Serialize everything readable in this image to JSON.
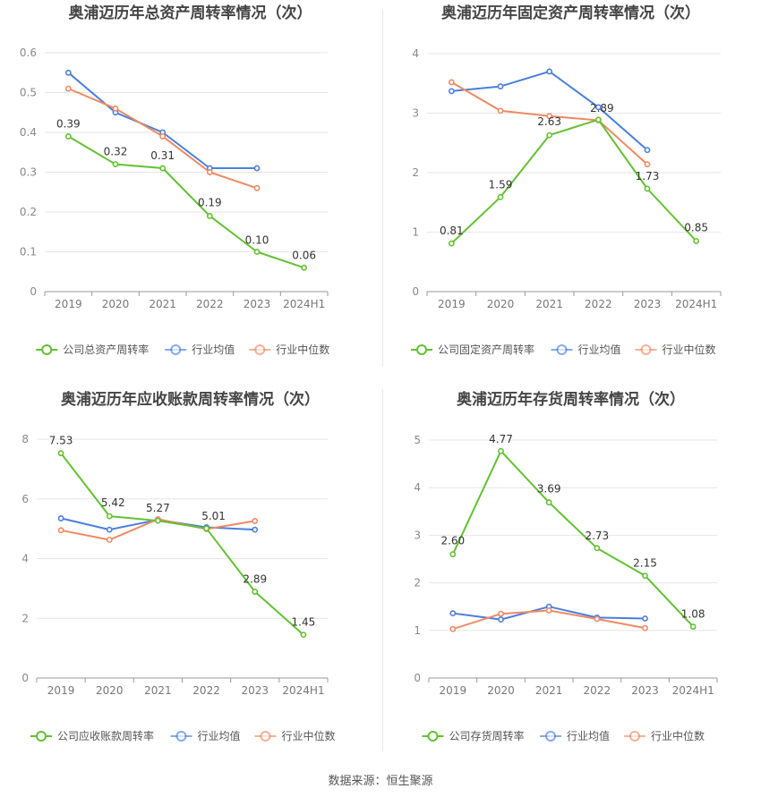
{
  "footer": {
    "label": "数据来源：",
    "source": "恒生聚源"
  },
  "colors": {
    "company": "#63c132",
    "industry_avg": "#4a7fdc",
    "industry_median": "#ef8a62"
  },
  "chart_data": [
    {
      "type": "line",
      "title": "奥浦迈历年总资产周转率情况（次）",
      "categories": [
        "2019",
        "2020",
        "2021",
        "2022",
        "2023",
        "2024H1"
      ],
      "ylim": [
        0,
        0.6
      ],
      "yticks": [
        "0",
        "0.1",
        "0.2",
        "0.3",
        "0.4",
        "0.5",
        "0.6"
      ],
      "grid": true,
      "legend_position": "bottom",
      "series": [
        {
          "name": "公司总资产周转率",
          "role": "company",
          "values": [
            0.39,
            0.32,
            0.31,
            0.19,
            0.1,
            0.06
          ],
          "labels": [
            "0.39",
            "0.32",
            "0.31",
            "0.19",
            "0.10",
            "0.06"
          ]
        },
        {
          "name": "行业均值",
          "role": "industry_avg",
          "values": [
            0.55,
            0.45,
            0.4,
            0.31,
            0.31,
            null
          ]
        },
        {
          "name": "行业中位数",
          "role": "industry_median",
          "values": [
            0.51,
            0.46,
            0.39,
            0.3,
            0.26,
            null
          ]
        }
      ]
    },
    {
      "type": "line",
      "title": "奥浦迈历年固定资产周转率情况（次）",
      "categories": [
        "2019",
        "2020",
        "2021",
        "2022",
        "2023",
        "2024H1"
      ],
      "ylim": [
        0,
        4
      ],
      "yticks": [
        "0",
        "1",
        "2",
        "3",
        "4"
      ],
      "grid": true,
      "legend_position": "bottom",
      "series": [
        {
          "name": "公司固定资产周转率",
          "role": "company",
          "values": [
            0.81,
            1.59,
            2.63,
            2.89,
            1.73,
            0.85
          ],
          "labels": [
            "0.81",
            "1.59",
            "2.63",
            "2.89",
            "1.73",
            "0.85"
          ]
        },
        {
          "name": "行业均值",
          "role": "industry_avg",
          "values": [
            3.37,
            3.45,
            3.7,
            3.1,
            2.38,
            null
          ]
        },
        {
          "name": "行业中位数",
          "role": "industry_median",
          "values": [
            3.52,
            3.04,
            2.95,
            2.88,
            2.14,
            null
          ]
        }
      ]
    },
    {
      "type": "line",
      "title": "奥浦迈历年应收账款周转率情况（次）",
      "categories": [
        "2019",
        "2020",
        "2021",
        "2022",
        "2023",
        "2024H1"
      ],
      "ylim": [
        0,
        8
      ],
      "yticks": [
        "0",
        "2",
        "4",
        "6",
        "8"
      ],
      "grid": true,
      "legend_position": "bottom",
      "series": [
        {
          "name": "公司应收账款周转率",
          "role": "company",
          "values": [
            7.53,
            5.42,
            5.27,
            5.01,
            2.89,
            1.45
          ],
          "labels": [
            "7.53",
            "5.42",
            "5.27",
            "5.01",
            "2.89",
            "1.45"
          ]
        },
        {
          "name": "行业均值",
          "role": "industry_avg",
          "values": [
            5.35,
            4.97,
            5.3,
            5.05,
            4.97,
            null
          ]
        },
        {
          "name": "行业中位数",
          "role": "industry_median",
          "values": [
            4.95,
            4.63,
            5.32,
            4.99,
            5.26,
            null
          ]
        }
      ]
    },
    {
      "type": "line",
      "title": "奥浦迈历年存货周转率情况（次）",
      "categories": [
        "2019",
        "2020",
        "2021",
        "2022",
        "2023",
        "2024H1"
      ],
      "ylim": [
        0,
        5
      ],
      "yticks": [
        "0",
        "1",
        "2",
        "3",
        "4",
        "5"
      ],
      "grid": true,
      "legend_position": "bottom",
      "series": [
        {
          "name": "公司存货周转率",
          "role": "company",
          "values": [
            2.6,
            4.77,
            3.69,
            2.73,
            2.15,
            1.08
          ],
          "labels": [
            "2.60",
            "4.77",
            "3.69",
            "2.73",
            "2.15",
            "1.08"
          ]
        },
        {
          "name": "行业均值",
          "role": "industry_avg",
          "values": [
            1.36,
            1.23,
            1.5,
            1.27,
            1.25,
            null
          ]
        },
        {
          "name": "行业中位数",
          "role": "industry_median",
          "values": [
            1.03,
            1.35,
            1.42,
            1.24,
            1.05,
            null
          ]
        }
      ]
    }
  ]
}
